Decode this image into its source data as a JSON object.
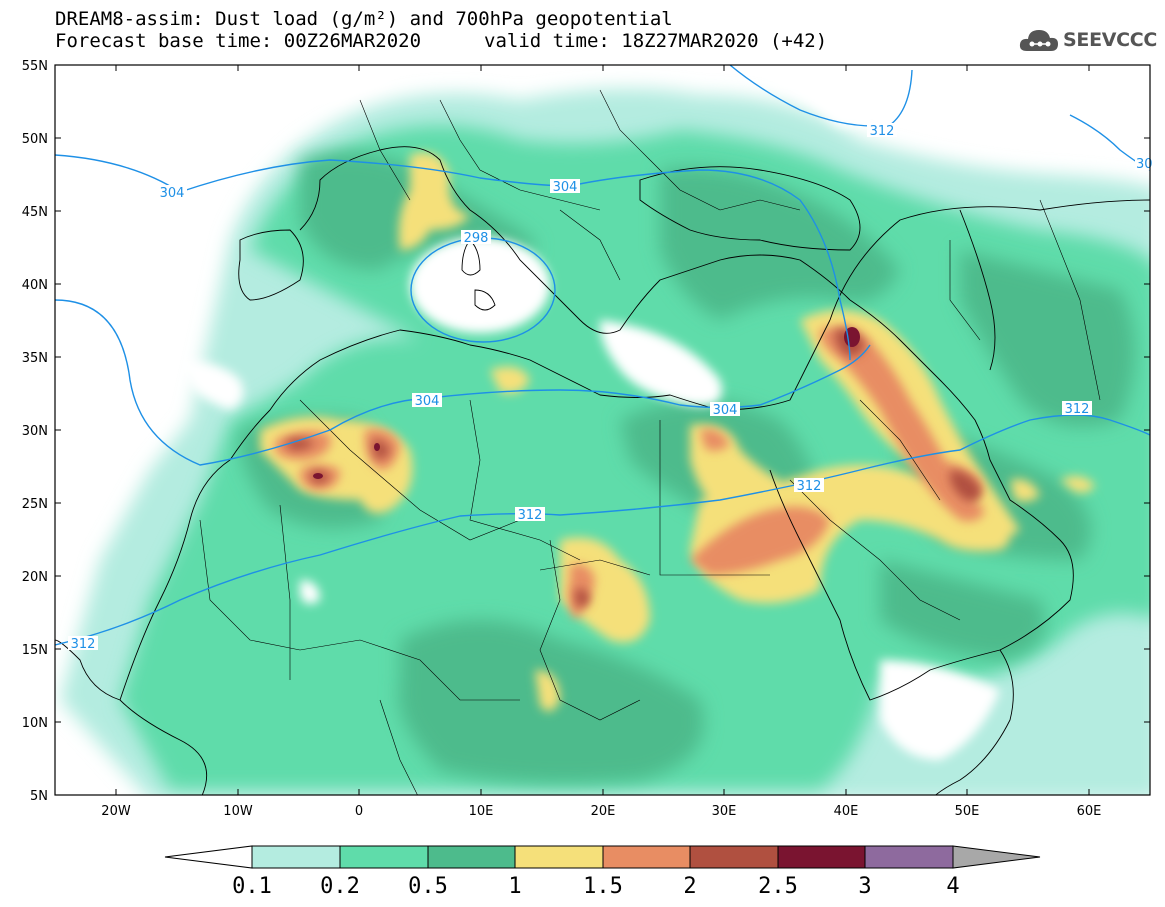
{
  "header": {
    "title_line1": "DREAM8-assim: Dust load (g/m²) and 700hPa geopotential",
    "title_line2_left": "Forecast base time: 00Z26MAR2020",
    "title_line2_right": "valid time: 18Z27MAR2020 (+42)"
  },
  "logo": {
    "text": "SEEVCCC",
    "icon": "cloud-icon"
  },
  "map": {
    "lat_labels": [
      "55N",
      "50N",
      "45N",
      "40N",
      "35N",
      "30N",
      "25N",
      "20N",
      "15N",
      "10N",
      "5N"
    ],
    "lon_labels": [
      "20W",
      "10W",
      "0",
      "10E",
      "20E",
      "30E",
      "40E",
      "50E",
      "60E"
    ],
    "contour_labels": [
      "304",
      "312",
      "304",
      "298",
      "304",
      "304",
      "312",
      "312",
      "312",
      "312",
      "30"
    ],
    "colors": {
      "water": "#ffffff",
      "border": "#000000",
      "contour": "#1e90e6"
    }
  },
  "colorbar": {
    "labels": [
      "0.1",
      "0.2",
      "0.5",
      "1",
      "1.5",
      "2",
      "2.5",
      "3",
      "4"
    ],
    "colors": [
      "#ffffff",
      "#b4ece0",
      "#5fdcaa",
      "#4dbb8c",
      "#f5e07a",
      "#e88d63",
      "#b05040",
      "#7a1430",
      "#8e6a9e",
      "#a8a8a8"
    ]
  }
}
